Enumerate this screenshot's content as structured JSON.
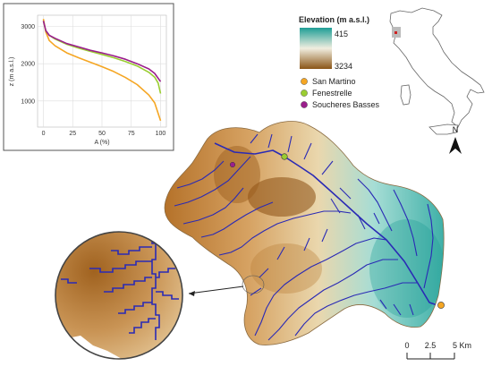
{
  "inset_chart": {
    "ylabel": "z (m a.s.l.)",
    "xlabel": "A (%)",
    "y_ticks": [
      "1000",
      "2000",
      "3000"
    ],
    "x_ticks": [
      "0",
      "25",
      "50",
      "75",
      "100"
    ]
  },
  "chart_data": {
    "type": "line",
    "xlabel": "A (%)",
    "ylabel": "z (m a.s.l.)",
    "xlim": [
      -5,
      105
    ],
    "ylim": [
      300,
      3300
    ],
    "grid": true,
    "series": [
      {
        "name": "San Martino",
        "color": "#f5a623",
        "x": [
          0,
          2,
          5,
          10,
          20,
          30,
          40,
          50,
          60,
          70,
          80,
          90,
          95,
          100
        ],
        "y": [
          3200,
          2850,
          2620,
          2480,
          2290,
          2160,
          2040,
          1920,
          1790,
          1630,
          1440,
          1160,
          950,
          470
        ]
      },
      {
        "name": "Fenestrelle",
        "color": "#9acd32",
        "x": [
          0,
          2,
          5,
          10,
          20,
          30,
          40,
          50,
          60,
          70,
          80,
          90,
          95,
          98,
          100
        ],
        "y": [
          3150,
          2880,
          2760,
          2660,
          2520,
          2420,
          2330,
          2250,
          2160,
          2060,
          1940,
          1770,
          1640,
          1480,
          1200
        ]
      },
      {
        "name": "Soucheres Basses",
        "color": "#9b1e8c",
        "x": [
          0,
          2,
          5,
          10,
          20,
          30,
          40,
          50,
          60,
          70,
          80,
          90,
          95,
          100
        ],
        "y": [
          3150,
          2890,
          2760,
          2680,
          2540,
          2450,
          2360,
          2290,
          2210,
          2120,
          2000,
          1860,
          1740,
          1520
        ]
      }
    ]
  },
  "legend": {
    "title": "Elevation (m a.s.l.)",
    "max_label": "415",
    "min_label": "3234",
    "color_top": "#1f9e96",
    "color_bottom": "#8a5516",
    "items": [
      {
        "label": "San Martino",
        "color": "#f5a623"
      },
      {
        "label": "Fenestrelle",
        "color": "#9acd32"
      },
      {
        "label": "Soucheres Basses",
        "color": "#9b1e8c"
      }
    ]
  },
  "north_arrow": {
    "label": "N"
  },
  "scalebar": {
    "ticks": [
      "0",
      "2.5",
      "5 Km"
    ]
  },
  "map": {
    "river_color": "#2a2ab5"
  }
}
